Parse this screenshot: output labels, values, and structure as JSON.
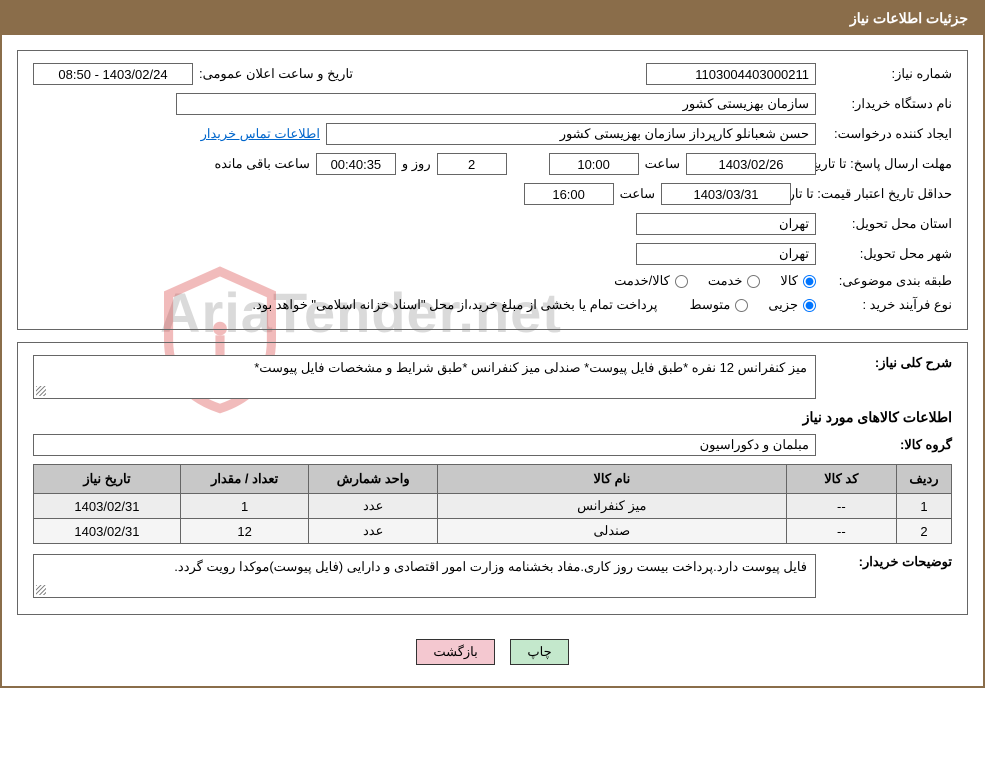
{
  "header": {
    "title": "جزئیات اطلاعات نیاز"
  },
  "fields": {
    "need_number_label": "شماره نیاز:",
    "need_number": "1103004403000211",
    "announce_datetime_label": "تاریخ و ساعت اعلان عمومی:",
    "announce_datetime": "08:50 - 1403/02/24",
    "buyer_org_label": "نام دستگاه خریدار:",
    "buyer_org": "سازمان بهزیستی کشور",
    "requester_label": "ایجاد کننده درخواست:",
    "requester": "حسن  شعبانلو کارپرداز سازمان بهزیستی کشور",
    "buyer_contact_link": "اطلاعات تماس خریدار",
    "deadline_label": "مهلت ارسال پاسخ: تا تاریخ:",
    "deadline_date": "1403/02/26",
    "time_label": "ساعت",
    "deadline_time": "10:00",
    "days": "2",
    "days_label": "روز و",
    "remaining_time": "00:40:35",
    "remaining_label": "ساعت باقی مانده",
    "validity_label": "حداقل تاریخ اعتبار قیمت: تا تاریخ:",
    "validity_date": "1403/03/31",
    "validity_time": "16:00",
    "province_label": "استان محل تحویل:",
    "province": "تهران",
    "city_label": "شهر محل تحویل:",
    "city": "تهران",
    "category_label": "طبقه بندی موضوعی:",
    "cat_goods": "کالا",
    "cat_service": "خدمت",
    "cat_goods_service": "کالا/خدمت",
    "purchase_type_label": "نوع فرآیند خرید :",
    "type_partial": "جزیی",
    "type_medium": "متوسط",
    "payment_note": "پرداخت تمام یا بخشی از مبلغ خرید،از محل \"اسناد خزانه اسلامی\" خواهد بود."
  },
  "description": {
    "overall_label": "شرح کلی نیاز:",
    "overall_text": "میز کنفرانس 12 نفره *طبق فایل پیوست*  صندلی میز کنفرانس *طبق شرایط و مشخصات فایل پیوست*",
    "goods_info_title": "اطلاعات کالاهای مورد نیاز",
    "group_label": "گروه کالا:",
    "group": "مبلمان و دکوراسیون",
    "buyer_notes_label": "توضیحات خریدار:",
    "buyer_notes": "فایل پیوست دارد.پرداخت بیست روز کاری.مفاد بخشنامه وزارت امور اقتصادی و دارایی (فایل پیوست)موکدا رویت گردد."
  },
  "table": {
    "headers": {
      "row": "ردیف",
      "code": "کد کالا",
      "name": "نام کالا",
      "unit": "واحد شمارش",
      "qty": "تعداد / مقدار",
      "need_date": "تاریخ نیاز"
    },
    "rows": [
      {
        "row": "1",
        "code": "--",
        "name": "میز کنفرانس",
        "unit": "عدد",
        "qty": "1",
        "need_date": "1403/02/31"
      },
      {
        "row": "2",
        "code": "--",
        "name": "صندلی",
        "unit": "عدد",
        "qty": "12",
        "need_date": "1403/02/31"
      }
    ],
    "col_widths": {
      "row": "6%",
      "code": "12%",
      "name": "38%",
      "unit": "14%",
      "qty": "14%",
      "need_date": "16%"
    }
  },
  "buttons": {
    "print": "چاپ",
    "back": "بازگشت"
  },
  "watermark": {
    "text": "AriaTender.net",
    "shield_stroke": "#d94040"
  },
  "colors": {
    "header_bg": "#8a6d4a",
    "header_text": "#ffffff",
    "border": "#666666",
    "table_header_bg": "#c8c8c8",
    "link": "#0066cc",
    "btn_print_bg": "#c4e8cc",
    "btn_back_bg": "#f4c8d0"
  }
}
